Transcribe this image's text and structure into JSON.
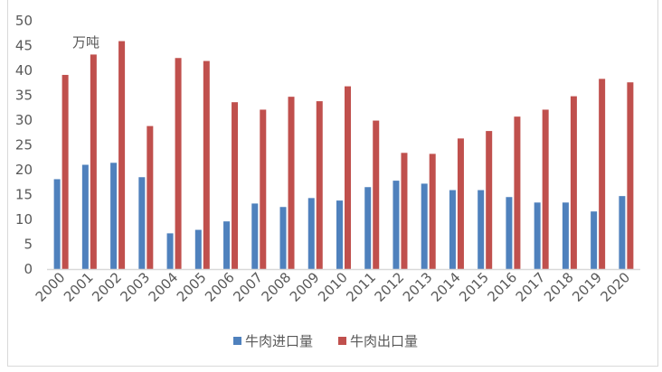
{
  "chart_data": {
    "type": "bar",
    "title": "",
    "unit_label": "万吨",
    "categories": [
      "2000",
      "2001",
      "2002",
      "2003",
      "2004",
      "2005",
      "2006",
      "2007",
      "2008",
      "2009",
      "2010",
      "2011",
      "2012",
      "2013",
      "2014",
      "2015",
      "2016",
      "2017",
      "2018",
      "2019",
      "2020"
    ],
    "series": [
      {
        "name": "牛肉进口量",
        "color": "#4f81bd",
        "values": [
          18.1,
          21.0,
          21.4,
          18.5,
          7.2,
          7.9,
          9.6,
          13.2,
          12.5,
          14.3,
          13.8,
          16.5,
          17.8,
          17.2,
          15.9,
          15.9,
          14.5,
          13.4,
          13.4,
          11.6,
          14.7
        ]
      },
      {
        "name": "牛肉出口量",
        "color": "#c0504d",
        "values": [
          39.1,
          43.2,
          45.9,
          28.8,
          42.5,
          41.9,
          33.6,
          32.1,
          34.7,
          33.8,
          36.8,
          29.9,
          23.4,
          23.2,
          26.3,
          27.8,
          30.7,
          32.1,
          34.8,
          38.3,
          37.6
        ]
      }
    ],
    "ylim": [
      0,
      50
    ],
    "yticks": [
      0,
      5,
      10,
      15,
      20,
      25,
      30,
      35,
      40,
      45,
      50
    ],
    "grid": false,
    "legend": "bottom"
  }
}
